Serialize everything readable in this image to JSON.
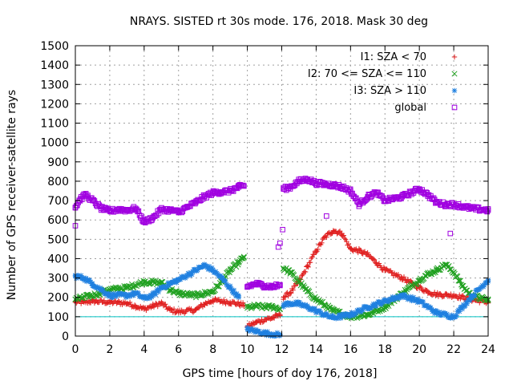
{
  "chart_data": {
    "type": "scatter",
    "title": "NRAYS. SISTED rt 30s mode. 176, 2018. Mask 30 deg",
    "xlabel": "GPS time [hours of doy 176, 2018]",
    "ylabel": "Number of GPS receiver-satellite rays",
    "xlim": [
      0,
      24
    ],
    "ylim": [
      0,
      1500
    ],
    "xticks": [
      "0",
      "2",
      "4",
      "6",
      "8",
      "10",
      "12",
      "14",
      "16",
      "18",
      "20",
      "22",
      "24"
    ],
    "yticks": [
      "0",
      "100",
      "200",
      "300",
      "400",
      "500",
      "600",
      "700",
      "800",
      "900",
      "1000",
      "1100",
      "1200",
      "1300",
      "1400",
      "1500"
    ],
    "grid": true,
    "legend_position": "top-right",
    "reference_line": {
      "y": 100,
      "color": "#00c0c0"
    },
    "series": [
      {
        "name": "I1: SZA < 70",
        "marker": "+",
        "color": "#e02020",
        "segments": [
          {
            "x": [
              0,
              0.5,
              1,
              2,
              3,
              3.5,
              4,
              4.5,
              5,
              5.5,
              6,
              7,
              7.5,
              8,
              9,
              9.8
            ],
            "y": [
              175,
              175,
              180,
              175,
              170,
              155,
              140,
              155,
              170,
              135,
              125,
              135,
              165,
              185,
              175,
              160
            ]
          },
          {
            "x": [
              10,
              10.5,
              11,
              11.5,
              11.9
            ],
            "y": [
              50,
              70,
              85,
              95,
              110
            ]
          },
          {
            "x": [
              12.1,
              12.5,
              13,
              13.5,
              14,
              14.5,
              15,
              15.5,
              16,
              16.5,
              17,
              17.5,
              18,
              19,
              20,
              20.5,
              21,
              22,
              23,
              24
            ],
            "y": [
              200,
              225,
              280,
              360,
              440,
              510,
              545,
              530,
              450,
              440,
              420,
              380,
              340,
              300,
              250,
              230,
              215,
              210,
              190,
              175
            ]
          }
        ]
      },
      {
        "name": "I2: 70 <= SZA <= 110",
        "marker": "x",
        "color": "#20a020",
        "segments": [
          {
            "x": [
              0,
              1,
              2,
              3,
              4,
              5,
              5.5,
              6,
              7,
              8,
              8.5,
              9,
              9.5,
              9.8
            ],
            "y": [
              190,
              210,
              240,
              250,
              280,
              275,
              240,
              220,
              210,
              230,
              280,
              340,
              380,
              410
            ]
          },
          {
            "x": [
              10,
              10.5,
              11,
              11.5,
              11.9
            ],
            "y": [
              145,
              155,
              150,
              150,
              140
            ]
          },
          {
            "x": [
              12.1,
              12.5,
              13,
              13.5,
              14,
              14.5,
              15,
              16,
              17,
              18,
              19,
              20,
              20.5,
              21,
              21.5,
              22,
              22.5,
              23,
              24
            ],
            "y": [
              350,
              330,
              280,
              230,
              190,
              160,
              130,
              100,
              110,
              150,
              220,
              290,
              320,
              340,
              370,
              330,
              260,
              210,
              185
            ]
          }
        ]
      },
      {
        "name": "I3: SZA > 110",
        "marker": "*",
        "color": "#2080e0",
        "segments": [
          {
            "x": [
              0,
              0.5,
              1,
              1.5,
              2,
              3,
              3.5,
              4,
              4.5,
              5,
              6,
              7,
              7.5,
              8,
              8.5,
              9,
              9.5
            ],
            "y": [
              310,
              300,
              270,
              240,
              210,
              210,
              220,
              195,
              210,
              250,
              290,
              340,
              365,
              340,
              300,
              250,
              200
            ]
          },
          {
            "x": [
              10,
              10.5,
              11,
              11.5,
              11.9
            ],
            "y": [
              35,
              25,
              15,
              10,
              5
            ]
          },
          {
            "x": [
              12.1,
              12.5,
              13,
              13.5,
              14,
              14.5,
              15,
              16,
              17,
              18,
              19,
              20,
              21,
              22,
              23,
              24
            ],
            "y": [
              160,
              170,
              165,
              150,
              130,
              110,
              95,
              110,
              150,
              180,
              210,
              180,
              120,
              100,
              200,
              290
            ]
          }
        ]
      },
      {
        "name": "global",
        "marker": "square",
        "color": "#a000e0",
        "segments": [
          {
            "x": [
              0,
              0.3,
              0.6,
              1,
              1.5,
              2,
              2.5,
              3,
              3.5,
              4,
              4.5,
              5,
              5.5,
              6,
              6.5,
              7,
              7.5,
              8,
              8.5,
              9,
              9.5,
              9.8
            ],
            "y": [
              665,
              710,
              730,
              700,
              660,
              645,
              655,
              650,
              660,
              590,
              610,
              655,
              650,
              640,
              665,
              690,
              720,
              740,
              745,
              750,
              770,
              775
            ]
          },
          {
            "x": [
              10,
              10.5,
              11,
              11.5,
              11.9
            ],
            "y": [
              255,
              270,
              260,
              255,
              265
            ]
          },
          {
            "x": [
              12.1,
              12.5,
              13,
              13.5,
              14,
              14.5,
              15,
              15.5,
              16,
              16.5,
              17,
              17.5,
              18,
              18.5,
              19,
              19.5,
              20,
              20.5,
              21,
              21.5,
              22,
              23,
              24
            ],
            "y": [
              760,
              770,
              800,
              810,
              790,
              785,
              780,
              770,
              750,
              680,
              720,
              740,
              700,
              710,
              720,
              740,
              760,
              730,
              690,
              680,
              680,
              660,
              650
            ]
          }
        ],
        "outliers": {
          "x": [
            0,
            11.8,
            11.9,
            12.05,
            14.6,
            21.8
          ],
          "y": [
            570,
            460,
            480,
            550,
            620,
            530
          ]
        }
      }
    ]
  }
}
